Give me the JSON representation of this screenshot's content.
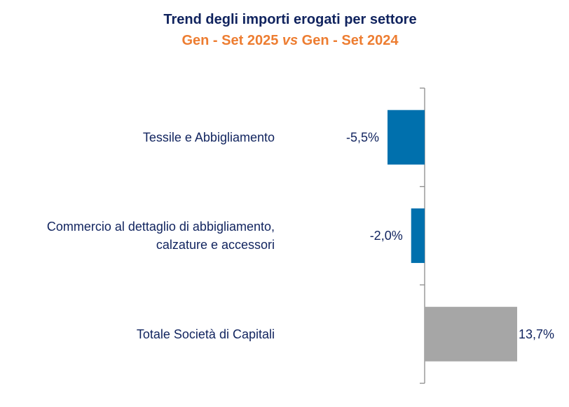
{
  "chart_data": {
    "type": "bar",
    "orientation": "horizontal",
    "title": "Trend degli importi erogati per settore",
    "subtitle_parts": [
      "Gen - Set 2025 ",
      "vs",
      " Gen - Set 2024"
    ],
    "categories": [
      [
        "Tessile e Abbigliamento"
      ],
      [
        "Commercio al dettaglio di abbigliamento,",
        "calzature e accessori"
      ],
      [
        "Totale Società di Capitali"
      ]
    ],
    "values": [
      -5.5,
      -2.0,
      13.7
    ],
    "value_labels": [
      "-5,5%",
      "-2,0%",
      "13,7%"
    ],
    "colors": [
      "#0070ad",
      "#0070ad",
      "#a6a6a6"
    ],
    "unit": "%",
    "grid": false,
    "legend": "none",
    "text_color": "#10235e",
    "subtitle_color": "#ed7d31"
  }
}
